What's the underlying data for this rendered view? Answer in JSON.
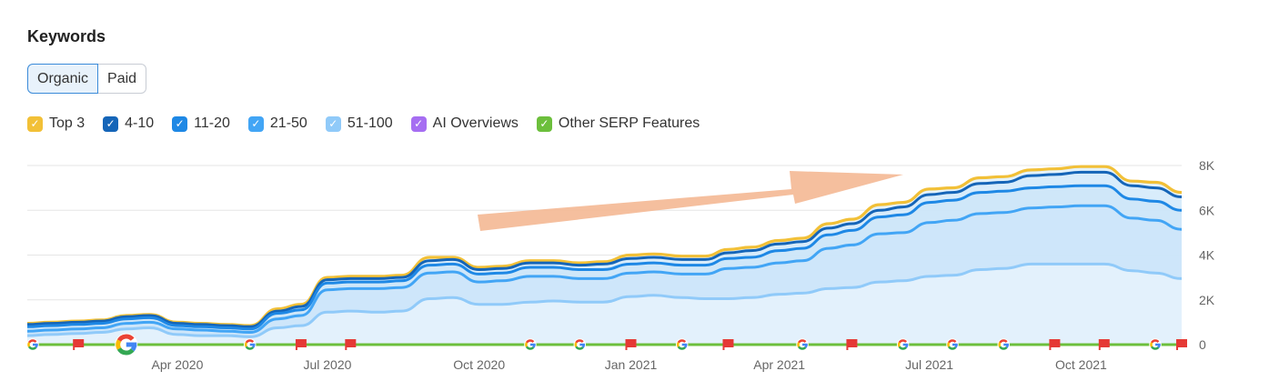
{
  "title": "Keywords",
  "tabs": [
    {
      "label": "Organic",
      "active": true
    },
    {
      "label": "Paid",
      "active": false
    }
  ],
  "legend": [
    {
      "label": "Top 3",
      "color": "#f2c037"
    },
    {
      "label": "4-10",
      "color": "#1565b8"
    },
    {
      "label": "11-20",
      "color": "#1e88e5"
    },
    {
      "label": "21-50",
      "color": "#42a5f5"
    },
    {
      "label": "51-100",
      "color": "#90caf9"
    },
    {
      "label": "AI Overviews",
      "color": "#a66ef2"
    },
    {
      "label": "Other SERP Features",
      "color": "#6cbf3c"
    }
  ],
  "chart_data": {
    "type": "area",
    "x": [
      "2020-01-01",
      "2020-01-15",
      "2020-02-01",
      "2020-02-15",
      "2020-03-01",
      "2020-03-15",
      "2020-04-01",
      "2020-04-15",
      "2020-05-01",
      "2020-05-15",
      "2020-06-01",
      "2020-06-15",
      "2020-07-01",
      "2020-07-15",
      "2020-08-01",
      "2020-08-15",
      "2020-09-01",
      "2020-09-15",
      "2020-10-01",
      "2020-10-15",
      "2020-11-01",
      "2020-11-15",
      "2020-12-01",
      "2020-12-15",
      "2021-01-01",
      "2021-01-15",
      "2021-02-01",
      "2021-02-15",
      "2021-03-01",
      "2021-03-15",
      "2021-04-01",
      "2021-04-15",
      "2021-05-01",
      "2021-05-15",
      "2021-06-01",
      "2021-06-15",
      "2021-07-01",
      "2021-07-15",
      "2021-08-01",
      "2021-08-15",
      "2021-09-01",
      "2021-09-15",
      "2021-10-01",
      "2021-10-15",
      "2021-11-01",
      "2021-11-15",
      "2021-12-01"
    ],
    "series": [
      {
        "name": "Top 3",
        "values": [
          950,
          1000,
          1050,
          1100,
          1300,
          1350,
          1000,
          950,
          900,
          850,
          1600,
          1800,
          3000,
          3050,
          3050,
          3100,
          3900,
          3900,
          3450,
          3500,
          3750,
          3750,
          3650,
          3700,
          4000,
          4050,
          3950,
          3950,
          4250,
          4350,
          4650,
          4750,
          5400,
          5600,
          6250,
          6350,
          6950,
          7000,
          7450,
          7500,
          7800,
          7850,
          7950,
          7950,
          7300,
          7250,
          6800
        ]
      },
      {
        "name": "4-10",
        "values": [
          900,
          950,
          1000,
          1050,
          1250,
          1300,
          950,
          900,
          850,
          800,
          1500,
          1700,
          2900,
          2950,
          2950,
          3000,
          3750,
          3800,
          3350,
          3400,
          3650,
          3650,
          3550,
          3600,
          3850,
          3900,
          3800,
          3800,
          4100,
          4200,
          4500,
          4600,
          5200,
          5400,
          6000,
          6150,
          6700,
          6800,
          7200,
          7250,
          7550,
          7600,
          7700,
          7700,
          7100,
          7000,
          6600
        ]
      },
      {
        "name": "11-20",
        "values": [
          800,
          850,
          900,
          950,
          1150,
          1200,
          850,
          800,
          750,
          700,
          1400,
          1550,
          2750,
          2800,
          2800,
          2850,
          3550,
          3600,
          3150,
          3200,
          3450,
          3450,
          3350,
          3350,
          3600,
          3650,
          3550,
          3550,
          3850,
          3900,
          4200,
          4300,
          4900,
          5100,
          5700,
          5800,
          6350,
          6450,
          6800,
          6850,
          7000,
          7050,
          7100,
          7100,
          6500,
          6400,
          6000
        ]
      },
      {
        "name": "21-50",
        "values": [
          600,
          650,
          700,
          750,
          950,
          1000,
          700,
          650,
          600,
          550,
          1150,
          1300,
          2450,
          2500,
          2500,
          2550,
          3200,
          3250,
          2800,
          2850,
          3050,
          3050,
          2950,
          2950,
          3200,
          3250,
          3150,
          3150,
          3400,
          3450,
          3650,
          3750,
          4300,
          4450,
          4950,
          5000,
          5450,
          5550,
          5850,
          5900,
          6100,
          6150,
          6200,
          6200,
          5650,
          5550,
          5150
        ]
      },
      {
        "name": "51-100",
        "values": [
          400,
          450,
          500,
          550,
          700,
          750,
          450,
          400,
          400,
          350,
          750,
          850,
          1450,
          1500,
          1450,
          1500,
          2050,
          2100,
          1800,
          1800,
          1900,
          1950,
          1900,
          1900,
          2150,
          2200,
          2100,
          2050,
          2050,
          2100,
          2250,
          2300,
          2500,
          2550,
          2800,
          2850,
          3050,
          3100,
          3350,
          3400,
          3600,
          3600,
          3600,
          3600,
          3300,
          3200,
          2950
        ]
      }
    ],
    "y_ticks": [
      "0",
      "2K",
      "4K",
      "6K",
      "8K"
    ],
    "ylim": [
      0,
      8000
    ],
    "x_ticks": [
      {
        "label": "Apr 2020",
        "date": "2020-04-01"
      },
      {
        "label": "Jul 2020",
        "date": "2020-07-01"
      },
      {
        "label": "Oct 2020",
        "date": "2020-10-01"
      },
      {
        "label": "Jan 2021",
        "date": "2021-01-01"
      },
      {
        "label": "Apr 2021",
        "date": "2021-04-01"
      },
      {
        "label": "Jul 2021",
        "date": "2021-07-01"
      },
      {
        "label": "Oct 2021",
        "date": "2021-10-01"
      }
    ],
    "grid": true,
    "legend_position": "top-left",
    "annotations": [
      {
        "type": "google-update",
        "date": "2020-01-01"
      },
      {
        "type": "flag",
        "date": "2020-02-01"
      },
      {
        "type": "google-update-large",
        "date": "2020-03-01"
      },
      {
        "type": "google-update",
        "date": "2020-05-15"
      },
      {
        "type": "flag",
        "date": "2020-06-15"
      },
      {
        "type": "flag",
        "date": "2020-07-15"
      },
      {
        "type": "google-update",
        "date": "2020-11-01"
      },
      {
        "type": "google-update",
        "date": "2020-12-01"
      },
      {
        "type": "flag",
        "date": "2021-01-01"
      },
      {
        "type": "google-update",
        "date": "2021-02-01"
      },
      {
        "type": "flag",
        "date": "2021-03-01"
      },
      {
        "type": "google-update",
        "date": "2021-04-15"
      },
      {
        "type": "flag",
        "date": "2021-05-15"
      },
      {
        "type": "google-update",
        "date": "2021-06-15"
      },
      {
        "type": "google-update",
        "date": "2021-07-15"
      },
      {
        "type": "google-update",
        "date": "2021-08-15"
      },
      {
        "type": "flag",
        "date": "2021-09-15"
      },
      {
        "type": "flag",
        "date": "2021-10-15"
      },
      {
        "type": "google-update",
        "date": "2021-11-15"
      },
      {
        "type": "flag",
        "date": "2021-12-15"
      }
    ]
  }
}
